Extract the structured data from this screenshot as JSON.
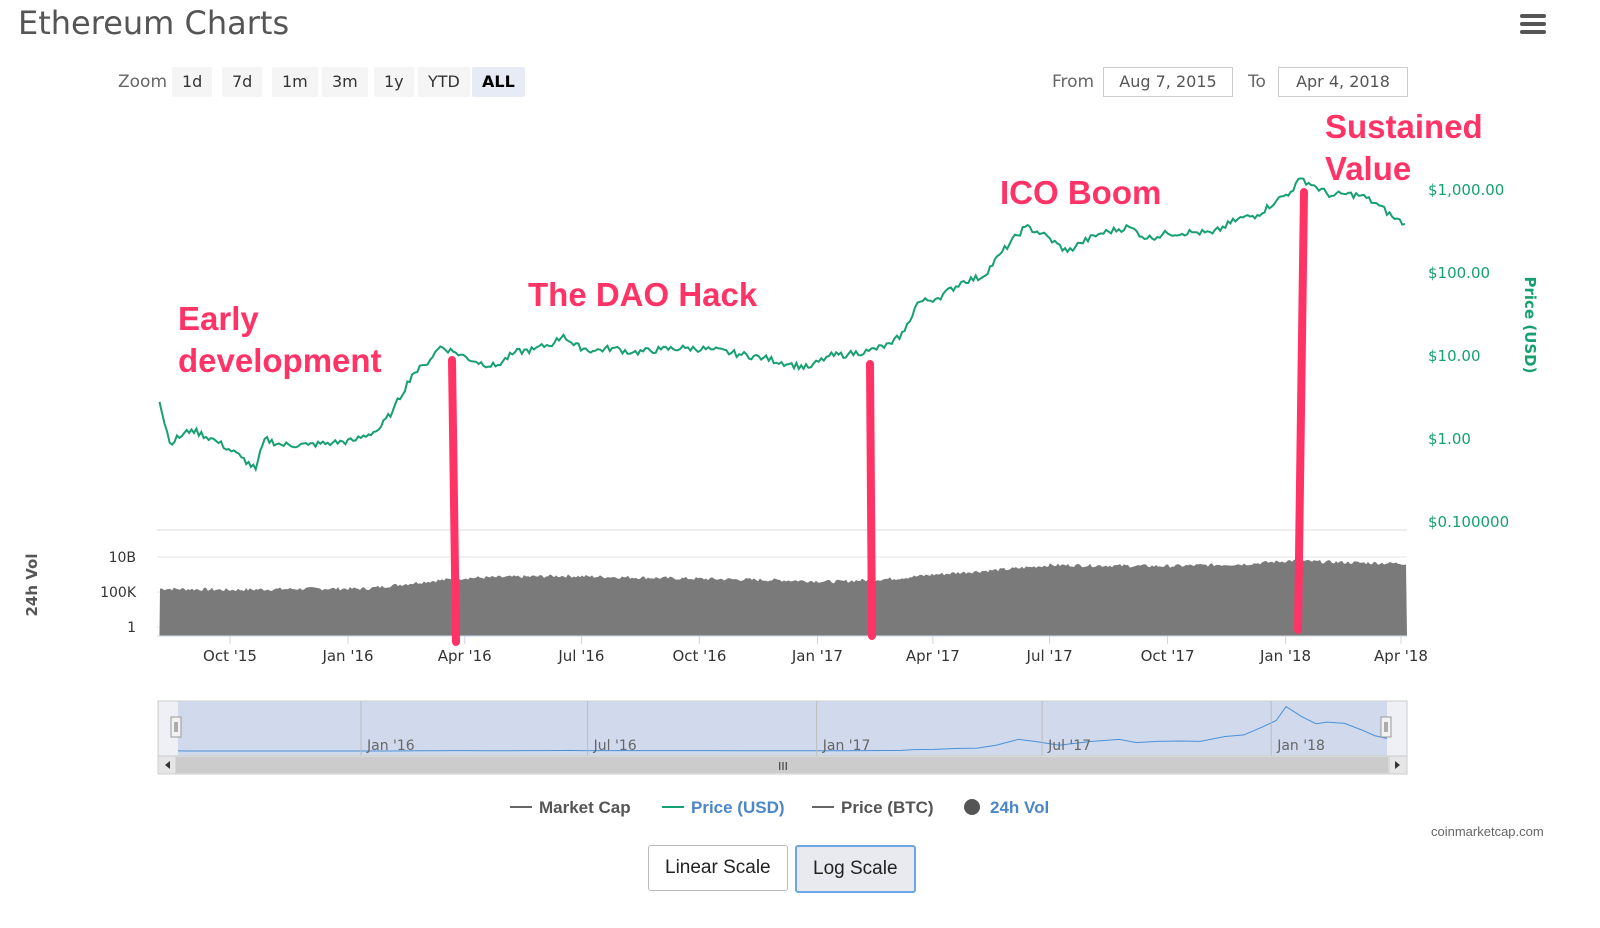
{
  "page": {
    "title": "Ethereum Charts",
    "credit": "coinmarketcap.com"
  },
  "zoom": {
    "label": "Zoom",
    "buttons": [
      "1d",
      "7d",
      "1m",
      "3m",
      "1y",
      "YTD",
      "ALL"
    ],
    "active": "ALL"
  },
  "range": {
    "from_label": "From",
    "from_value": "Aug 7, 2015",
    "to_label": "To",
    "to_value": "Apr 4, 2018"
  },
  "scale_buttons": {
    "linear": "Linear Scale",
    "log": "Log Scale",
    "active": "log"
  },
  "colors": {
    "price": "#16a06f",
    "volume": "#7a7a7a",
    "annotation": "#ff3366",
    "navigator_fill": "#c9d5ea",
    "navigator_line": "#4a90d9"
  },
  "annotations": [
    {
      "lines": [
        "Early",
        "development"
      ]
    },
    {
      "lines": [
        "The DAO Hack"
      ]
    },
    {
      "lines": [
        "ICO Boom"
      ]
    },
    {
      "lines": [
        "Sustained",
        "Value"
      ]
    }
  ],
  "chart_data": {
    "type": "line",
    "scale": "log",
    "grid": true,
    "legend_position": "bottom",
    "x_ticks": [
      "Oct '15",
      "Jan '16",
      "Apr '16",
      "Jul '16",
      "Oct '16",
      "Jan '17",
      "Apr '17",
      "Jul '17",
      "Oct '17",
      "Jan '18",
      "Apr '18"
    ],
    "y_ticks": [
      "$1,000.00",
      "$100.00",
      "$10.00",
      "$1.00",
      "$0.100000"
    ],
    "ylabel": "Price (USD)",
    "ylim": [
      0.1,
      3000
    ],
    "vol_ylabel": "24h Vol",
    "vol_ticks": [
      "10B",
      "100K",
      "1"
    ],
    "navigator_ticks": [
      "Jan '16",
      "Jul '16",
      "Jan '17",
      "Jul '17",
      "Jan '18"
    ],
    "navigator_handle": "III",
    "legend": [
      {
        "name": "Market Cap",
        "kind": "line",
        "color": "#555555",
        "muted": true
      },
      {
        "name": "Price (USD)",
        "kind": "line",
        "color": "#16a06f",
        "muted": false
      },
      {
        "name": "Price (BTC)",
        "kind": "line",
        "color": "#555555",
        "muted": true
      },
      {
        "name": "24h Vol",
        "kind": "dot",
        "color": "#555555",
        "muted": false
      }
    ],
    "series": [
      {
        "name": "Price (USD)",
        "x": [
          "2015-08-07",
          "2015-08-15",
          "2015-09-01",
          "2015-09-20",
          "2015-10-10",
          "2015-10-21",
          "2015-10-28",
          "2015-11-10",
          "2015-12-01",
          "2015-12-20",
          "2016-01-05",
          "2016-01-25",
          "2016-02-05",
          "2016-02-20",
          "2016-03-01",
          "2016-03-13",
          "2016-03-25",
          "2016-04-10",
          "2016-04-25",
          "2016-05-10",
          "2016-05-25",
          "2016-06-10",
          "2016-06-17",
          "2016-06-25",
          "2016-07-10",
          "2016-07-25",
          "2016-08-10",
          "2016-09-01",
          "2016-09-20",
          "2016-10-10",
          "2016-11-01",
          "2016-11-20",
          "2016-12-10",
          "2016-12-25",
          "2017-01-10",
          "2017-01-25",
          "2017-02-10",
          "2017-02-28",
          "2017-03-10",
          "2017-03-20",
          "2017-04-05",
          "2017-04-25",
          "2017-05-10",
          "2017-05-25",
          "2017-06-12",
          "2017-06-25",
          "2017-07-15",
          "2017-07-25",
          "2017-08-10",
          "2017-09-01",
          "2017-09-15",
          "2017-10-01",
          "2017-10-20",
          "2017-11-05",
          "2017-11-25",
          "2017-12-10",
          "2017-12-25",
          "2018-01-05",
          "2018-01-13",
          "2018-01-25",
          "2018-02-06",
          "2018-02-15",
          "2018-03-01",
          "2018-03-15",
          "2018-03-25",
          "2018-04-04"
        ],
        "values": [
          2.8,
          0.9,
          1.3,
          0.95,
          0.6,
          0.43,
          1.0,
          0.85,
          0.85,
          0.9,
          0.95,
          1.3,
          2.2,
          6.0,
          7.8,
          13.0,
          11.0,
          8.5,
          7.5,
          11.0,
          12.0,
          14.5,
          18.0,
          13.5,
          11.5,
          12.5,
          11.0,
          12.0,
          12.5,
          12.0,
          10.5,
          9.5,
          8.0,
          7.2,
          10.0,
          10.5,
          11.5,
          14.0,
          20.0,
          44.0,
          50.0,
          80.0,
          90.0,
          180.0,
          360.0,
          300.0,
          180.0,
          230.0,
          300.0,
          360.0,
          260.0,
          300.0,
          310.0,
          300.0,
          450.0,
          500.0,
          750.0,
          950.0,
          1380.0,
          1080.0,
          850.0,
          900.0,
          860.0,
          650.0,
          480.0,
          390.0
        ]
      },
      {
        "name": "24h Vol",
        "x": [
          "2015-08-07",
          "2015-10-01",
          "2015-12-01",
          "2016-01-15",
          "2016-03-01",
          "2016-04-01",
          "2016-06-15",
          "2016-09-01",
          "2016-12-01",
          "2017-01-15",
          "2017-03-01",
          "2017-04-01",
          "2017-06-01",
          "2017-07-01",
          "2017-10-01",
          "2017-12-01",
          "2018-01-05",
          "2018-02-01",
          "2018-03-01",
          "2018-04-04"
        ],
        "values": [
          300000,
          200000,
          300000,
          300000,
          3000000,
          10000000,
          20000000,
          10000000,
          5000000,
          3000000,
          8000000,
          30000000,
          200000000,
          700000000,
          500000000,
          1000000000,
          3000000000,
          2000000000,
          1500000000,
          1200000000
        ]
      }
    ]
  }
}
